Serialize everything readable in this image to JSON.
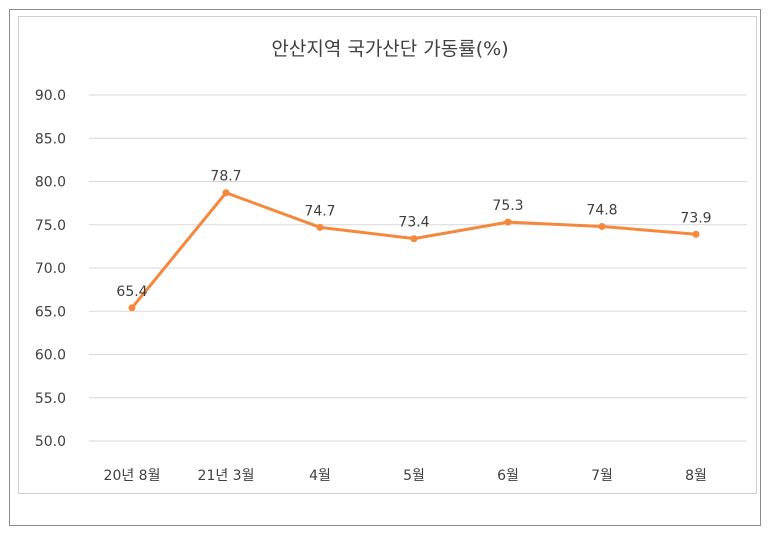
{
  "chart_data": {
    "type": "line",
    "title": "안산지역 국가산단 가동률(%)",
    "xlabel": "",
    "ylabel": "",
    "categories": [
      "20년 8월",
      "21년 3월",
      "4월",
      "5월",
      "6월",
      "7월",
      "8월"
    ],
    "series": [
      {
        "values": [
          65.4,
          78.7,
          74.7,
          73.4,
          75.3,
          74.8,
          73.9
        ],
        "color": "#f4883c"
      }
    ],
    "data_labels": [
      "65.4",
      "78.7",
      "74.7",
      "73.4",
      "75.3",
      "74.8",
      "73.9"
    ],
    "ylim": [
      50,
      90
    ],
    "y_ticks": [
      "50.0",
      "55.0",
      "60.0",
      "65.0",
      "70.0",
      "75.0",
      "80.0",
      "85.0",
      "90.0"
    ],
    "grid": true,
    "gridline_color": "#d9d9d9",
    "legend": "none"
  }
}
